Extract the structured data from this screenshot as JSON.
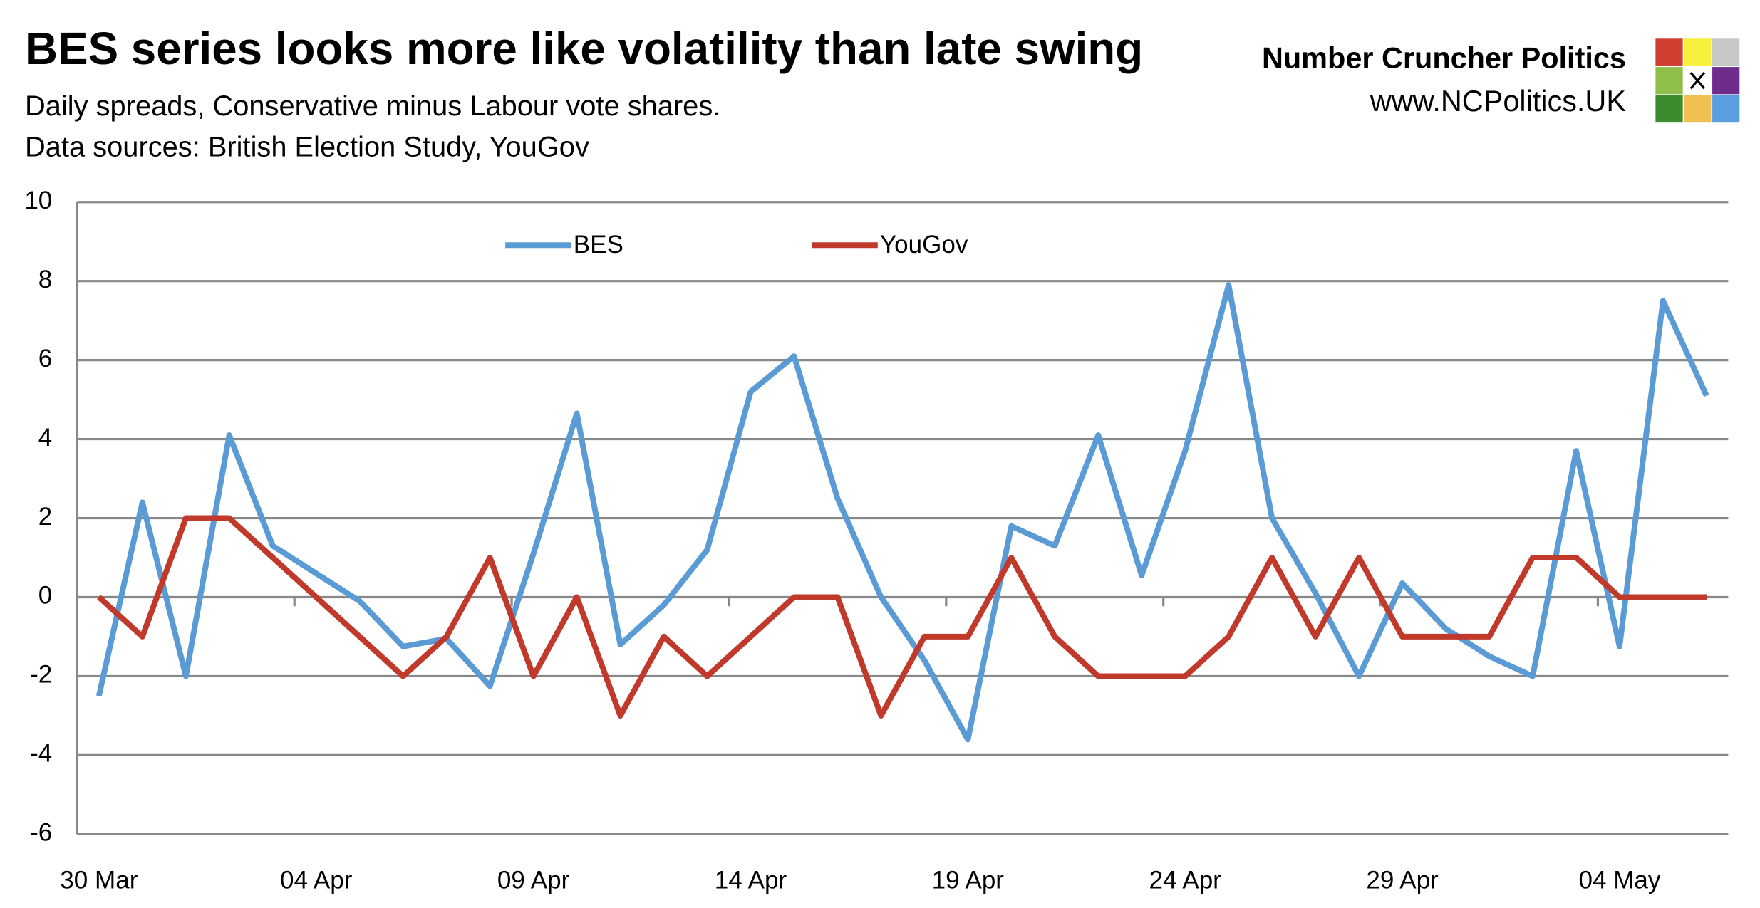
{
  "chart_data": {
    "type": "line",
    "title": "BES series looks more like volatility than late swing",
    "subtitle": [
      "Daily spreads, Conservative minus Labour vote shares.",
      "Data sources: British Election Study, YouGov"
    ],
    "brand": "Number Cruncher Politics",
    "url": "www.NCPolitics.UK",
    "categories": [
      "30 Mar",
      null,
      null,
      null,
      null,
      "04 Apr",
      null,
      null,
      null,
      null,
      "09 Apr",
      null,
      null,
      null,
      null,
      "14 Apr",
      null,
      null,
      null,
      null,
      "19 Apr",
      null,
      null,
      null,
      null,
      "24 Apr",
      null,
      null,
      null,
      null,
      "29 Apr",
      null,
      null,
      null,
      null,
      "04 May",
      null,
      null
    ],
    "series": [
      {
        "name": "BES",
        "color": "#5b9bd5",
        "values": [
          -2.5,
          2.4,
          -2,
          4.1,
          1.3,
          0.6,
          -0.1,
          -1.25,
          -1.05,
          -2.25,
          1.1,
          4.65,
          -1.2,
          -0.2,
          1.2,
          5.2,
          6.1,
          2.5,
          0,
          -1.6,
          -3.6,
          1.8,
          1.3,
          4.1,
          0.55,
          3.7,
          7.9,
          2.0,
          0.1,
          -2.0,
          0.35,
          -0.8,
          -1.5,
          -2.0,
          3.7,
          -1.25,
          7.5,
          5.1
        ]
      },
      {
        "name": "YouGov",
        "color": "#c0392b",
        "values": [
          0,
          -1,
          2,
          2,
          1,
          0,
          -1,
          -2,
          -1,
          1,
          -2,
          0,
          -3,
          -1,
          -2,
          -1,
          0,
          0,
          -3,
          -1,
          -1,
          1,
          -1,
          -2,
          -2,
          -2,
          -1,
          1,
          -1,
          1,
          -1,
          -1,
          -1,
          1,
          1,
          0,
          0,
          0
        ]
      }
    ],
    "ylim": [
      -6,
      10
    ],
    "yticks": [
      -6,
      -4,
      -2,
      0,
      2,
      4,
      6,
      8,
      10
    ],
    "grid": true
  }
}
